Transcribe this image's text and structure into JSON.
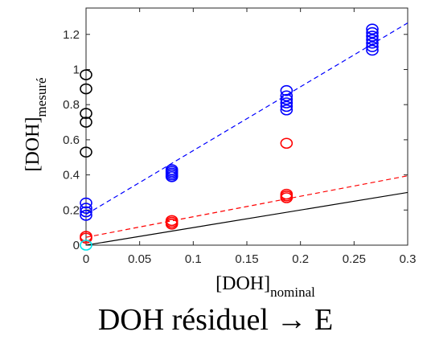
{
  "caption": "DOH résiduel → E",
  "chart_data": {
    "type": "scatter",
    "xlabel": {
      "main": "[DOH]",
      "sub": "nominal"
    },
    "ylabel": {
      "main": "[DOH]",
      "sub": "mesuré"
    },
    "xlim": [
      0,
      0.3
    ],
    "ylim": [
      0,
      1.35
    ],
    "xticks": [
      0,
      0.05,
      0.1,
      0.15,
      0.2,
      0.25,
      0.3
    ],
    "xtick_labels": [
      "0",
      "0.05",
      "0.1",
      "0.15",
      "0.2",
      "0.25",
      "0.3"
    ],
    "yticks": [
      0,
      0.2,
      0.4,
      0.6,
      0.8,
      1.0,
      1.2
    ],
    "ytick_labels": [
      "0",
      "0.2",
      "0.4",
      "0.6",
      "0.8",
      "1",
      "1.2"
    ],
    "grid": false,
    "series": [
      {
        "color": "#0000ff",
        "marker": "circle-open",
        "points": [
          [
            0,
            0.17
          ],
          [
            0,
            0.19
          ],
          [
            0,
            0.21
          ],
          [
            0,
            0.24
          ],
          [
            0.08,
            0.39
          ],
          [
            0.08,
            0.4
          ],
          [
            0.08,
            0.41
          ],
          [
            0.08,
            0.42
          ],
          [
            0.08,
            0.43
          ],
          [
            0.187,
            0.77
          ],
          [
            0.187,
            0.79
          ],
          [
            0.187,
            0.81
          ],
          [
            0.187,
            0.83
          ],
          [
            0.187,
            0.85
          ],
          [
            0.187,
            0.88
          ],
          [
            0.267,
            1.11
          ],
          [
            0.267,
            1.13
          ],
          [
            0.267,
            1.15
          ],
          [
            0.267,
            1.17
          ],
          [
            0.267,
            1.19
          ],
          [
            0.267,
            1.21
          ],
          [
            0.267,
            1.23
          ]
        ]
      },
      {
        "color": "#ff0000",
        "marker": "circle-open",
        "points": [
          [
            0,
            0.04
          ],
          [
            0,
            0.05
          ],
          [
            0.08,
            0.12
          ],
          [
            0.08,
            0.13
          ],
          [
            0.08,
            0.14
          ],
          [
            0.187,
            0.27
          ],
          [
            0.187,
            0.28
          ],
          [
            0.187,
            0.29
          ],
          [
            0.187,
            0.58
          ]
        ]
      },
      {
        "color": "#000000",
        "marker": "circle-open",
        "points": [
          [
            0,
            0.53
          ],
          [
            0,
            0.7
          ],
          [
            0,
            0.75
          ],
          [
            0,
            0.89
          ],
          [
            0,
            0.97
          ]
        ]
      },
      {
        "color": "#00e5ee",
        "marker": "circle-open",
        "points": [
          [
            0,
            0.0
          ]
        ]
      }
    ],
    "lines": [
      {
        "color": "#0000ff",
        "dash": "dashed",
        "from": [
          0,
          0.175
        ],
        "to": [
          0.3,
          1.265
        ]
      },
      {
        "color": "#ff0000",
        "dash": "dashed",
        "from": [
          0,
          0.045
        ],
        "to": [
          0.3,
          0.395
        ]
      },
      {
        "color": "#000000",
        "dash": "solid",
        "from": [
          0,
          0.0
        ],
        "to": [
          0.3,
          0.3
        ]
      }
    ]
  }
}
